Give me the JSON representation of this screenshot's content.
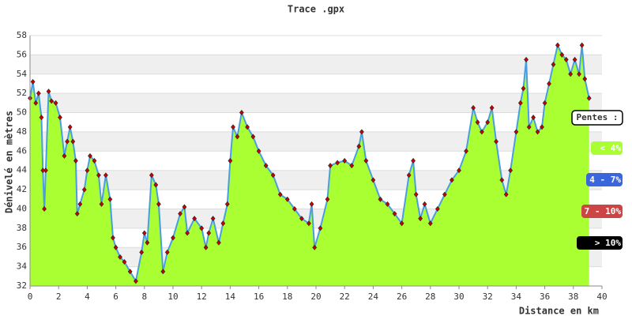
{
  "chart_data": {
    "type": "area",
    "title": "Trace .gpx",
    "y_label": "Dénivelé en mètres",
    "x_label": "Distance en km",
    "x": [
      0,
      0.2,
      0.4,
      0.6,
      0.8,
      0.9,
      1.0,
      1.1,
      1.3,
      1.5,
      1.8,
      2.1,
      2.4,
      2.6,
      2.8,
      3.0,
      3.2,
      3.3,
      3.5,
      3.8,
      4.0,
      4.2,
      4.5,
      4.8,
      5.0,
      5.3,
      5.6,
      5.8,
      6.0,
      6.3,
      6.6,
      7.0,
      7.4,
      7.8,
      8.0,
      8.2,
      8.5,
      8.8,
      9.0,
      9.3,
      9.6,
      10.0,
      10.5,
      10.8,
      11.0,
      11.5,
      12.0,
      12.3,
      12.5,
      12.8,
      13.2,
      13.5,
      13.8,
      14.0,
      14.2,
      14.5,
      14.8,
      15.2,
      15.6,
      16.0,
      16.5,
      17.0,
      17.5,
      18.0,
      18.5,
      19.0,
      19.5,
      19.7,
      19.9,
      20.3,
      20.8,
      21.0,
      21.5,
      22.0,
      22.5,
      23.0,
      23.2,
      23.5,
      24.0,
      24.5,
      25.0,
      25.5,
      26.0,
      26.5,
      26.8,
      27.0,
      27.3,
      27.6,
      28.0,
      28.5,
      29.0,
      29.5,
      30.0,
      30.5,
      31.0,
      31.3,
      31.6,
      32.0,
      32.3,
      32.6,
      33.0,
      33.3,
      33.6,
      34.0,
      34.3,
      34.5,
      34.7,
      34.9,
      35.2,
      35.5,
      35.8,
      36.0,
      36.3,
      36.6,
      36.9,
      37.2,
      37.5,
      37.8,
      38.1,
      38.4,
      38.6,
      38.8,
      39.1
    ],
    "values": [
      51.5,
      53.2,
      51,
      52,
      49.5,
      44,
      40,
      44,
      52.2,
      51.2,
      51,
      49.5,
      45.5,
      47,
      48.5,
      47,
      45,
      39.5,
      40.5,
      42,
      44,
      45.5,
      45,
      43.5,
      40.5,
      43.5,
      41,
      37,
      36,
      35,
      34.5,
      33.5,
      32.5,
      35.5,
      37.5,
      36.5,
      43.5,
      42.5,
      40.5,
      33.5,
      35.5,
      37,
      39.5,
      40.2,
      37.5,
      39,
      38,
      36,
      37.5,
      39,
      36.5,
      38.5,
      40.5,
      45,
      48.5,
      47.5,
      50,
      48.5,
      47.5,
      46,
      44.5,
      43.5,
      41.5,
      41,
      40,
      39,
      38.5,
      40.5,
      36,
      38,
      41,
      44.5,
      44.8,
      45,
      44.5,
      46.5,
      48,
      45,
      43,
      41,
      40.5,
      39.5,
      38.5,
      43.5,
      45,
      41.5,
      39,
      40.5,
      38.5,
      40,
      41.5,
      43,
      44,
      46,
      50.5,
      49,
      48,
      49,
      50.5,
      47,
      43,
      41.5,
      44,
      48,
      51,
      52.5,
      55.5,
      48.5,
      49.5,
      48,
      48.5,
      51,
      53,
      55,
      57,
      56,
      55.5,
      54,
      55.5,
      54,
      57,
      53.5,
      51.5
    ],
    "xlim": [
      0,
      40
    ],
    "ylim": [
      32,
      58
    ],
    "xticks": [
      0,
      2,
      4,
      6,
      8,
      10,
      12,
      14,
      16,
      18,
      20,
      22,
      24,
      26,
      28,
      30,
      32,
      34,
      36,
      38,
      40
    ],
    "yticks": [
      32,
      34,
      36,
      38,
      40,
      42,
      44,
      46,
      48,
      50,
      52,
      54,
      56,
      58
    ],
    "fill_color": "#aaff33",
    "line_color": "#4a9ee0",
    "marker_color": "#cc0000",
    "legend": {
      "title": "Pentes :",
      "items": [
        {
          "label": "< 4%",
          "color": "#aaff33"
        },
        {
          "label": "4 - 7%",
          "color": "#3a66dd"
        },
        {
          "label": "7 - 10%",
          "color": "#cc4444"
        },
        {
          "label": "> 10%",
          "color": "#000000"
        }
      ]
    }
  }
}
